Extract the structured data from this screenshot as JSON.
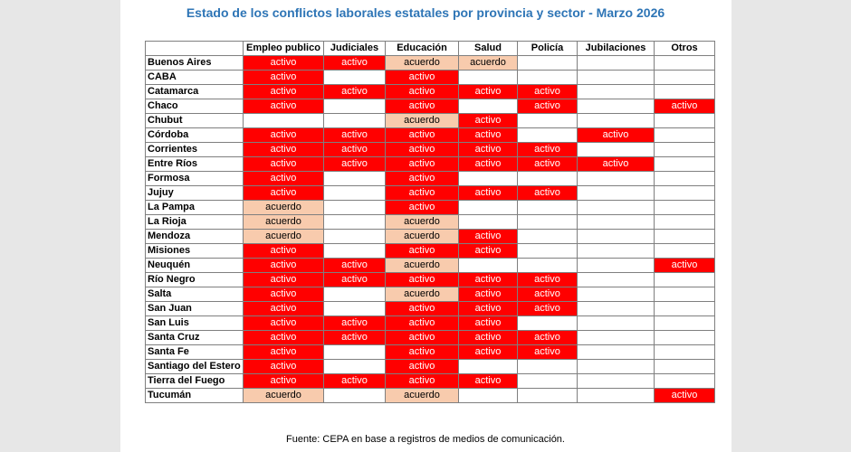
{
  "header": {
    "title": "Estado de los conflictos laborales estatales por provincia y sector - Marzo 2026"
  },
  "table": {
    "columns": [
      "Empleo publico",
      "Judiciales",
      "Educación",
      "Salud",
      "Policía",
      "Jubilaciones",
      "Otros"
    ],
    "status_colors": {
      "activo": "#ff0000",
      "acuerdo": "#f8cbad"
    },
    "rows": [
      {
        "province": "Buenos Aires",
        "cells": [
          "activo",
          "activo",
          "acuerdo",
          "acuerdo",
          null,
          null,
          null
        ]
      },
      {
        "province": "CABA",
        "cells": [
          "activo",
          null,
          "activo",
          null,
          null,
          null,
          null
        ]
      },
      {
        "province": "Catamarca",
        "cells": [
          "activo",
          "activo",
          "activo",
          "activo",
          "activo",
          null,
          null
        ]
      },
      {
        "province": "Chaco",
        "cells": [
          "activo",
          null,
          "activo",
          null,
          "activo",
          null,
          "activo"
        ]
      },
      {
        "province": "Chubut",
        "cells": [
          null,
          null,
          "acuerdo",
          "activo",
          null,
          null,
          null
        ]
      },
      {
        "province": "Córdoba",
        "cells": [
          "activo",
          "activo",
          "activo",
          "activo",
          null,
          "activo",
          null
        ]
      },
      {
        "province": "Corrientes",
        "cells": [
          "activo",
          "activo",
          "activo",
          "activo",
          "activo",
          null,
          null
        ]
      },
      {
        "province": "Entre Ríos",
        "cells": [
          "activo",
          "activo",
          "activo",
          "activo",
          "activo",
          "activo",
          null
        ]
      },
      {
        "province": "Formosa",
        "cells": [
          "activo",
          null,
          "activo",
          null,
          null,
          null,
          null
        ]
      },
      {
        "province": "Jujuy",
        "cells": [
          "activo",
          null,
          "activo",
          "activo",
          "activo",
          null,
          null
        ]
      },
      {
        "province": "La Pampa",
        "cells": [
          "acuerdo",
          null,
          "activo",
          null,
          null,
          null,
          null
        ]
      },
      {
        "province": "La Rioja",
        "cells": [
          "acuerdo",
          null,
          "acuerdo",
          null,
          null,
          null,
          null
        ]
      },
      {
        "province": "Mendoza",
        "cells": [
          "acuerdo",
          null,
          "acuerdo",
          "activo",
          null,
          null,
          null
        ]
      },
      {
        "province": "Misiones",
        "cells": [
          "activo",
          null,
          "activo",
          "activo",
          null,
          null,
          null
        ]
      },
      {
        "province": "Neuquén",
        "cells": [
          "activo",
          "activo",
          "acuerdo",
          null,
          null,
          null,
          "activo"
        ]
      },
      {
        "province": "Río Negro",
        "cells": [
          "activo",
          "activo",
          "activo",
          "activo",
          "activo",
          null,
          null
        ]
      },
      {
        "province": "Salta",
        "cells": [
          "activo",
          null,
          "acuerdo",
          "activo",
          "activo",
          null,
          null
        ]
      },
      {
        "province": "San Juan",
        "cells": [
          "activo",
          null,
          "activo",
          "activo",
          "activo",
          null,
          null
        ]
      },
      {
        "province": "San Luis",
        "cells": [
          "activo",
          "activo",
          "activo",
          "activo",
          null,
          null,
          null
        ]
      },
      {
        "province": "Santa Cruz",
        "cells": [
          "activo",
          "activo",
          "activo",
          "activo",
          "activo",
          null,
          null
        ]
      },
      {
        "province": "Santa Fe",
        "cells": [
          "activo",
          null,
          "activo",
          "activo",
          "activo",
          null,
          null
        ]
      },
      {
        "province": "Santiago del Estero",
        "cells": [
          "activo",
          null,
          "activo",
          null,
          null,
          null,
          null
        ]
      },
      {
        "province": "Tierra del Fuego",
        "cells": [
          "activo",
          "activo",
          "activo",
          "activo",
          null,
          null,
          null
        ]
      },
      {
        "province": "Tucumán",
        "cells": [
          "acuerdo",
          null,
          "acuerdo",
          null,
          null,
          null,
          "activo"
        ]
      }
    ]
  },
  "footer": {
    "source": "Fuente: CEPA en base a registros de medios de comunicación."
  }
}
